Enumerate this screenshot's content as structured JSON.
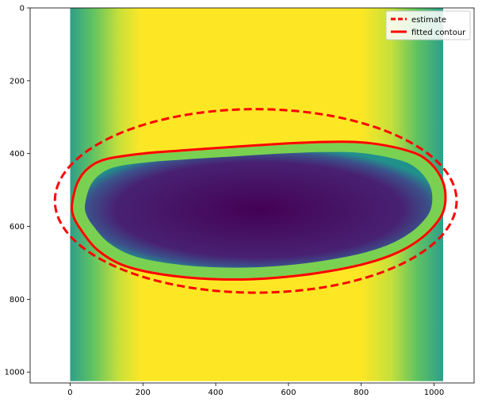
{
  "chart_data": {
    "type": "image",
    "title": "",
    "xlabel": "",
    "ylabel": "",
    "xlim": [
      -110,
      1110
    ],
    "ylim": [
      1030,
      0
    ],
    "image_extent": [
      0,
      1025,
      0,
      1025
    ],
    "x_ticks": [
      0,
      200,
      400,
      600,
      800,
      1000
    ],
    "y_ticks": [
      0,
      200,
      400,
      600,
      800,
      1000
    ],
    "x_tick_labels": [
      "0",
      "200",
      "400",
      "600",
      "800",
      "1000"
    ],
    "y_tick_labels": [
      "0",
      "200",
      "400",
      "600",
      "800",
      "1000"
    ],
    "legend": {
      "location": "upper-right",
      "entries": [
        {
          "label": "estimate",
          "style": "dashed",
          "color": "#ff0000"
        },
        {
          "label": "fitted contour",
          "style": "solid",
          "color": "#ff0000"
        }
      ]
    },
    "series": [
      {
        "name": "estimate",
        "type": "ellipse",
        "center": [
          510,
          530
        ],
        "rx": 552,
        "ry": 252
      },
      {
        "name": "fitted contour",
        "type": "contour",
        "points": [
          [
            5,
            540
          ],
          [
            20,
            480
          ],
          [
            50,
            440
          ],
          [
            100,
            415
          ],
          [
            200,
            400
          ],
          [
            300,
            392
          ],
          [
            400,
            385
          ],
          [
            500,
            378
          ],
          [
            600,
            372
          ],
          [
            700,
            368
          ],
          [
            780,
            368
          ],
          [
            850,
            375
          ],
          [
            920,
            390
          ],
          [
            970,
            410
          ],
          [
            1010,
            450
          ],
          [
            1030,
            500
          ],
          [
            1025,
            560
          ],
          [
            990,
            610
          ],
          [
            940,
            650
          ],
          [
            880,
            680
          ],
          [
            800,
            705
          ],
          [
            700,
            725
          ],
          [
            600,
            738
          ],
          [
            500,
            745
          ],
          [
            400,
            745
          ],
          [
            300,
            738
          ],
          [
            200,
            722
          ],
          [
            130,
            700
          ],
          [
            70,
            660
          ],
          [
            30,
            610
          ],
          [
            10,
            575
          ]
        ]
      }
    ]
  }
}
